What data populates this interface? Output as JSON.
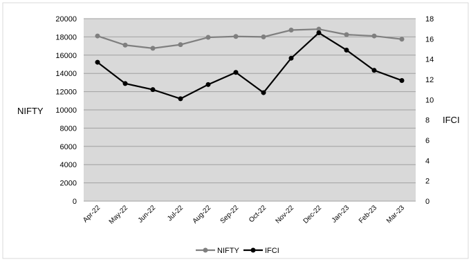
{
  "chart_data": {
    "type": "line",
    "categories": [
      "Apr-22",
      "May-22",
      "Jun-22",
      "Jul-22",
      "Aug-22",
      "Sep-22",
      "Oct-22",
      "Nov-22",
      "Dec-22",
      "Jan-23",
      "Feb-23",
      "Mar-23"
    ],
    "series": [
      {
        "name": "NIFTY",
        "axis": "left",
        "color": "#7f7f7f",
        "values": [
          18100,
          17100,
          16750,
          17150,
          17950,
          18050,
          18000,
          18750,
          18850,
          18250,
          18100,
          17750
        ]
      },
      {
        "name": "IFCI",
        "axis": "right",
        "color": "#000000",
        "values": [
          13.7,
          11.6,
          11.0,
          10.1,
          11.5,
          12.7,
          10.7,
          14.1,
          16.6,
          14.9,
          12.9,
          11.9
        ]
      }
    ],
    "ylabel": "NIFTY",
    "y2label": "IFCI",
    "ylim": [
      0,
      20000
    ],
    "y2lim": [
      0,
      18
    ],
    "yticks": [
      "0",
      "2000",
      "4000",
      "6000",
      "8000",
      "10000",
      "12000",
      "14000",
      "16000",
      "18000",
      "20000"
    ],
    "y2ticks": [
      "0",
      "2",
      "4",
      "6",
      "8",
      "10",
      "12",
      "14",
      "16",
      "18"
    ],
    "grid": true,
    "plot_background": "#d9d9d9",
    "legend": "bottom"
  }
}
